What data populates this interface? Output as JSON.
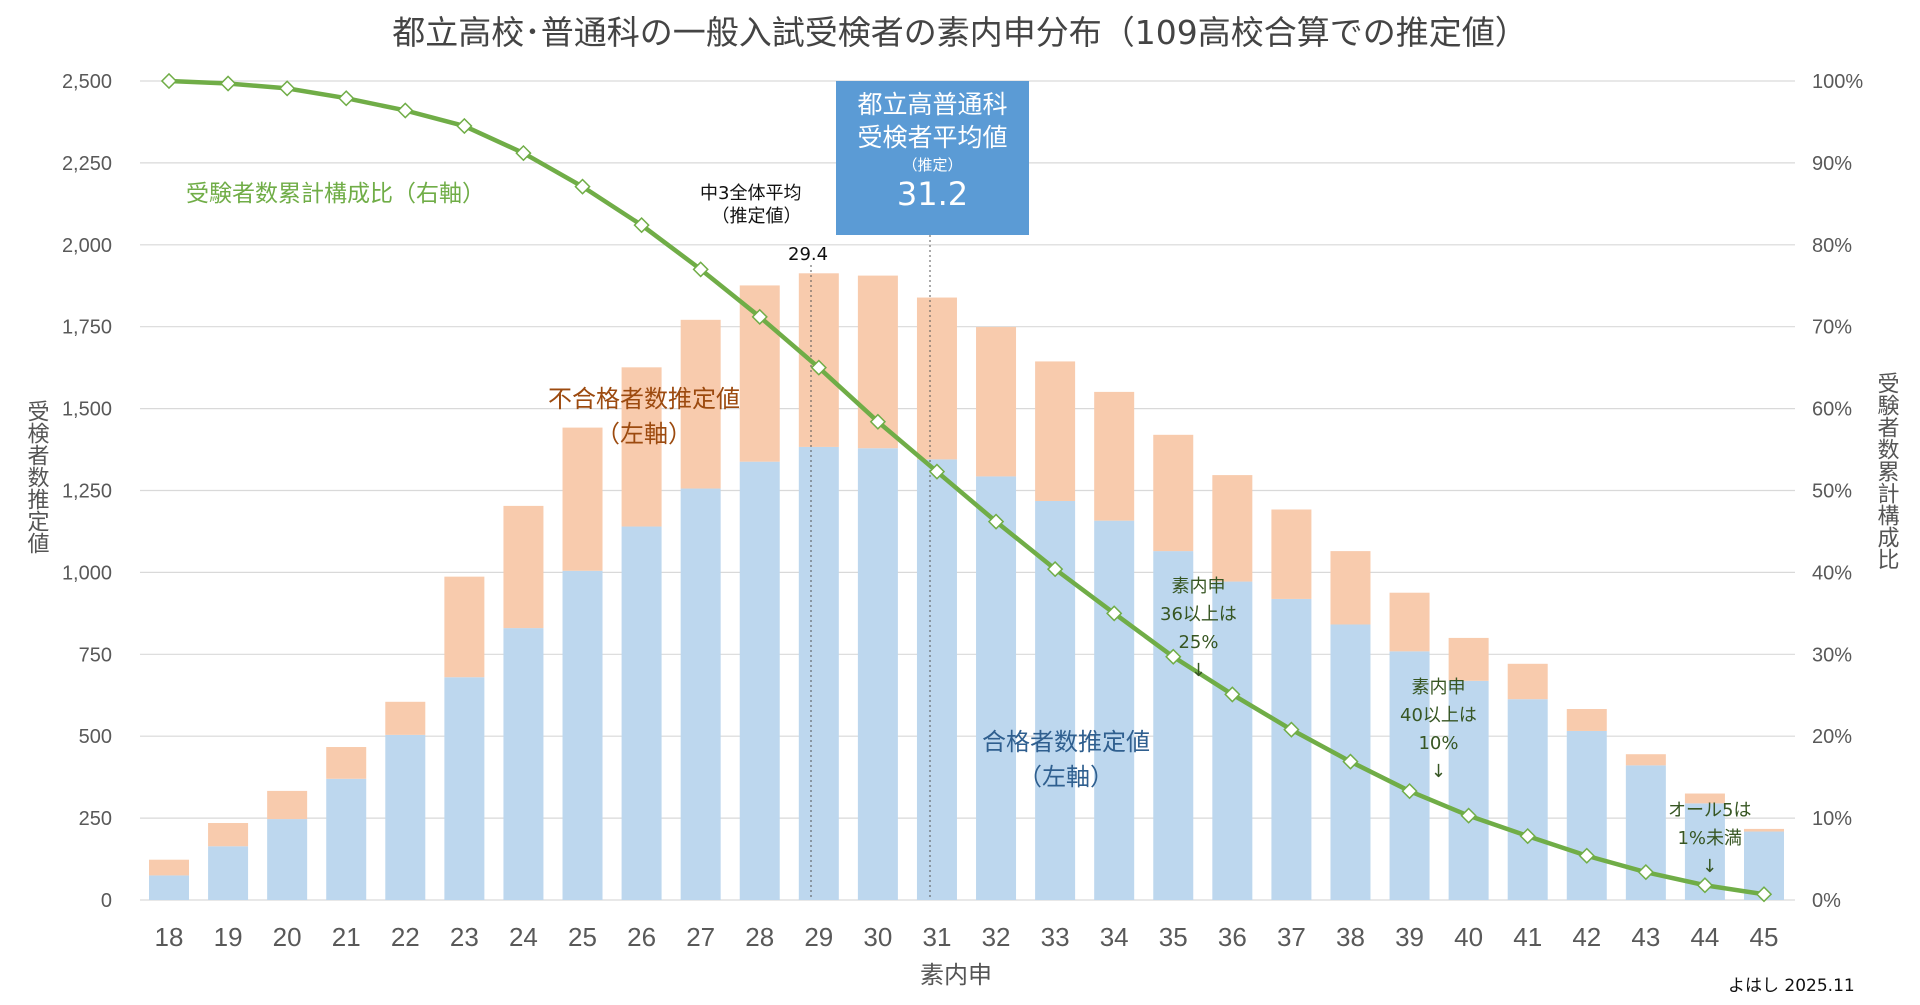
{
  "chart_data": {
    "type": "bar",
    "stacked": true,
    "title": "都立高校･普通科の一般入試受検者の素内申分布（109高校合算での推定値）",
    "xlabel": "素内申",
    "ylabel": "受検者数推定値",
    "y2label": "受験者数累計構成比",
    "ylim": [
      0,
      2500
    ],
    "y2lim": [
      0,
      100
    ],
    "yticks": [
      "0",
      "250",
      "500",
      "750",
      "1,000",
      "1,250",
      "1,500",
      "1,750",
      "2,000",
      "2,250",
      "2,500"
    ],
    "y2ticks": [
      "0%",
      "10%",
      "20%",
      "30%",
      "40%",
      "50%",
      "60%",
      "70%",
      "80%",
      "90%",
      "100%"
    ],
    "grid": true,
    "categories": [
      18,
      19,
      20,
      21,
      22,
      23,
      24,
      25,
      26,
      27,
      28,
      29,
      30,
      31,
      32,
      33,
      34,
      35,
      36,
      37,
      38,
      39,
      40,
      41,
      42,
      43,
      44,
      45
    ],
    "series": [
      {
        "name": "合格者数推定値（左軸）",
        "color": "#BDD7EE",
        "values": [
          75,
          164,
          247,
          370,
          504,
          680,
          830,
          1005,
          1140,
          1256,
          1338,
          1383,
          1379,
          1345,
          1293,
          1218,
          1158,
          1065,
          972,
          919,
          841,
          759,
          669,
          613,
          516,
          411,
          295,
          209
        ]
      },
      {
        "name": "不合格者数推定値（左軸）",
        "color": "#F8CBAD",
        "values": [
          48,
          71,
          86,
          97,
          101,
          307,
          373,
          437,
          486,
          515,
          538,
          530,
          527,
          494,
          456,
          426,
          393,
          355,
          325,
          273,
          224,
          179,
          131,
          108,
          67,
          34,
          30,
          8
        ]
      },
      {
        "name": "受験者数累計構成比（右軸）",
        "type": "line",
        "axis": "right",
        "color": "#70AD47",
        "values": [
          100,
          99.7,
          99.1,
          97.9,
          96.4,
          94.5,
          91.2,
          87.1,
          82.4,
          77.0,
          71.2,
          65.0,
          58.4,
          52.3,
          46.2,
          40.4,
          35.0,
          29.7,
          25.1,
          20.8,
          16.9,
          13.3,
          10.3,
          7.8,
          5.4,
          3.4,
          1.8,
          0.7
        ]
      }
    ],
    "labels": {
      "line": "受験者数累計構成比（右軸）",
      "fail": "不合格者数推定値\n（左軸）",
      "pass": "合格者数推定値\n（左軸）"
    },
    "annotations": {
      "overall_avg_label": "中3全体平均\n（推定値）",
      "overall_avg_value": "29.4",
      "box_title": "都立高普通科\n受検者平均値",
      "box_sub": "（推定）",
      "box_value": "31.2",
      "box_color": "#5B9BD5",
      "note36": "素内申\n36以上は\n25%\n↓",
      "note40": "素内申\n40以上は\n10%\n↓",
      "note45": "オール5は\n1%未満\n↓"
    },
    "credit": "よはし 2025.11"
  }
}
